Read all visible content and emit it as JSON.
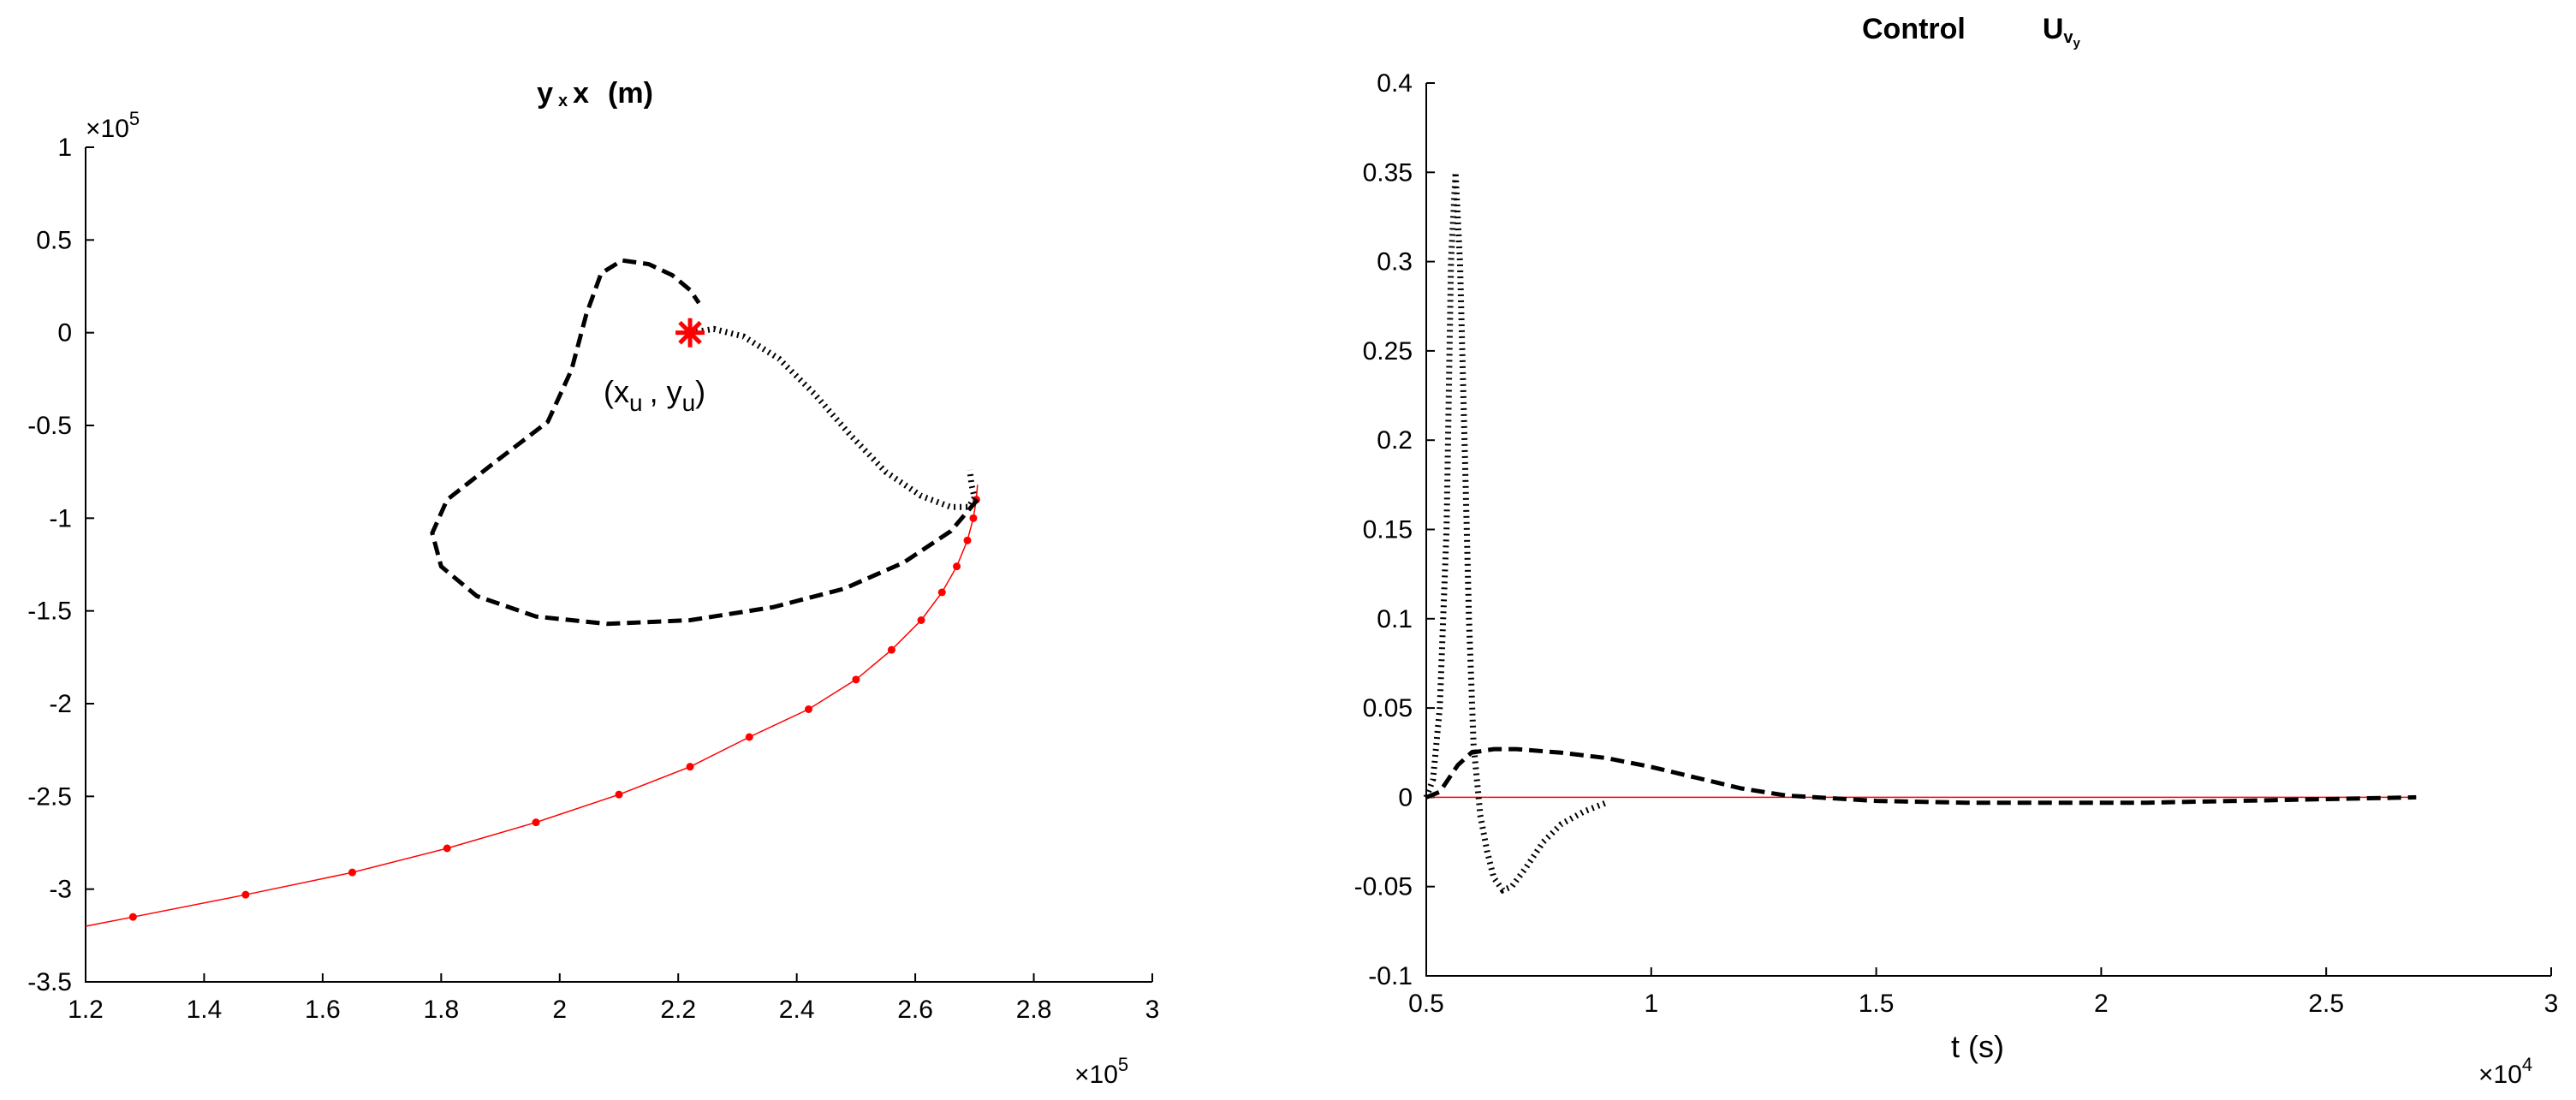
{
  "chart_data": [
    {
      "type": "line",
      "title": "y x x   (m)",
      "title_parts": {
        "main": "y",
        "sub": "x",
        "var": "x",
        "unit": "(m)"
      },
      "x_exponent": "×10",
      "x_exponent_power": "5",
      "y_exponent": "×10",
      "y_exponent_power": "5",
      "xlim": [
        120000,
        300000
      ],
      "ylim": [
        -350000,
        100000
      ],
      "xticks": [
        120000,
        140000,
        160000,
        180000,
        200000,
        220000,
        240000,
        260000,
        280000,
        300000
      ],
      "xtick_labels": [
        "1.2",
        "1.4",
        "1.6",
        "1.8",
        "2",
        "2.2",
        "2.4",
        "2.6",
        "2.8",
        "3"
      ],
      "yticks": [
        100000,
        50000,
        0,
        -50000,
        -100000,
        -150000,
        -200000,
        -250000,
        -300000,
        -350000
      ],
      "ytick_labels": [
        "1",
        "0.5",
        "0",
        "-0.5",
        "-1",
        "-1.5",
        "-2",
        "-2.5",
        "-3",
        "-3.5"
      ],
      "grid": false,
      "annotation": {
        "text": "(x_u , y_u)",
        "x_main": "(x",
        "x_sub": "u",
        "sep": ", y",
        "y_sub": "u",
        "close": ")"
      },
      "target": {
        "x": 222000,
        "y": 0,
        "color": "#ff0000"
      },
      "series": [
        {
          "style": "solid",
          "color": "#ff0000",
          "marker": "dot",
          "x": [
            120000,
            128000,
            147000,
            165000,
            181000,
            196000,
            210000,
            222000,
            232000,
            242000,
            250000,
            256000,
            261000,
            264500,
            267000,
            268800,
            269800,
            270300,
            270500
          ],
          "y": [
            -320000,
            -315000,
            -303000,
            -291000,
            -278000,
            -264000,
            -249000,
            -234000,
            -218000,
            -203000,
            -187000,
            -171000,
            -155000,
            -140000,
            -126000,
            -112000,
            -100000,
            -90000,
            -82000
          ]
        },
        {
          "style": "dashed",
          "color": "#000000",
          "x": [
            270500,
            266000,
            258000,
            248000,
            236000,
            222000,
            208000,
            196000,
            186000,
            180000,
            178500,
            181000,
            189000,
            198000,
            202000,
            204500,
            207000,
            210500,
            215000,
            219000,
            222000,
            223500
          ],
          "y": [
            -90000,
            -107000,
            -124000,
            -138000,
            -148000,
            -155000,
            -157000,
            -153000,
            -142000,
            -126000,
            -108000,
            -90000,
            -70000,
            -48000,
            -20000,
            10000,
            32000,
            39000,
            37000,
            31000,
            23000,
            16000
          ]
        },
        {
          "style": "dotted",
          "color": "#000000",
          "x": [
            222000,
            226000,
            231000,
            237000,
            243000,
            249000,
            255000,
            261000,
            266000,
            269000,
            270000,
            269500,
            269200
          ],
          "y": [
            0,
            2000,
            -2000,
            -14000,
            -33000,
            -55000,
            -75000,
            -88000,
            -94000,
            -94000,
            -89000,
            -82000,
            -74000
          ]
        }
      ]
    },
    {
      "type": "line",
      "title": "Control       Uvy",
      "title_parts": {
        "word": "Control",
        "u": "U",
        "sub": "v",
        "subsub": "y"
      },
      "xlabel": "t (s)",
      "x_exponent": "×10",
      "x_exponent_power": "4",
      "xlim": [
        5000,
        30000
      ],
      "ylim": [
        -0.1,
        0.4
      ],
      "xticks": [
        5000,
        10000,
        15000,
        20000,
        25000,
        30000
      ],
      "xtick_labels": [
        "0.5",
        "1",
        "1.5",
        "2",
        "2.5",
        "3"
      ],
      "yticks": [
        0.4,
        0.35,
        0.3,
        0.25,
        0.2,
        0.15,
        0.1,
        0.05,
        0,
        -0.05,
        -0.1
      ],
      "ytick_labels": [
        "0.4",
        "0.35",
        "0.3",
        "0.25",
        "0.2",
        "0.15",
        "0.1",
        "0.05",
        "0",
        "-0.05",
        "-0.1"
      ],
      "grid": false,
      "series": [
        {
          "style": "solid",
          "color": "#ff0000",
          "x": [
            5000,
            27000
          ],
          "y": [
            0,
            0
          ]
        },
        {
          "style": "dashed",
          "color": "#000000",
          "x": [
            5000,
            5300,
            5700,
            6000,
            6500,
            7000,
            8000,
            9000,
            10000,
            11000,
            12000,
            13000,
            15000,
            17000,
            19000,
            21000,
            23000,
            25000,
            27000
          ],
          "y": [
            0,
            0.003,
            0.018,
            0.025,
            0.027,
            0.027,
            0.025,
            0.022,
            0.017,
            0.011,
            0.005,
            0.001,
            -0.002,
            -0.003,
            -0.003,
            -0.003,
            -0.002,
            -0.001,
            0
          ]
        },
        {
          "style": "dotted",
          "color": "#000000",
          "x": [
            5000,
            5150,
            5300,
            5450,
            5550,
            5650,
            5750,
            5850,
            5950,
            6050,
            6200,
            6350,
            6500,
            6700,
            6900,
            7200,
            7600,
            8000,
            8500,
            9000
          ],
          "y": [
            0,
            0.01,
            0.05,
            0.15,
            0.3,
            0.35,
            0.3,
            0.2,
            0.1,
            0.03,
            -0.01,
            -0.03,
            -0.045,
            -0.052,
            -0.05,
            -0.04,
            -0.025,
            -0.015,
            -0.008,
            -0.003
          ]
        }
      ]
    }
  ]
}
